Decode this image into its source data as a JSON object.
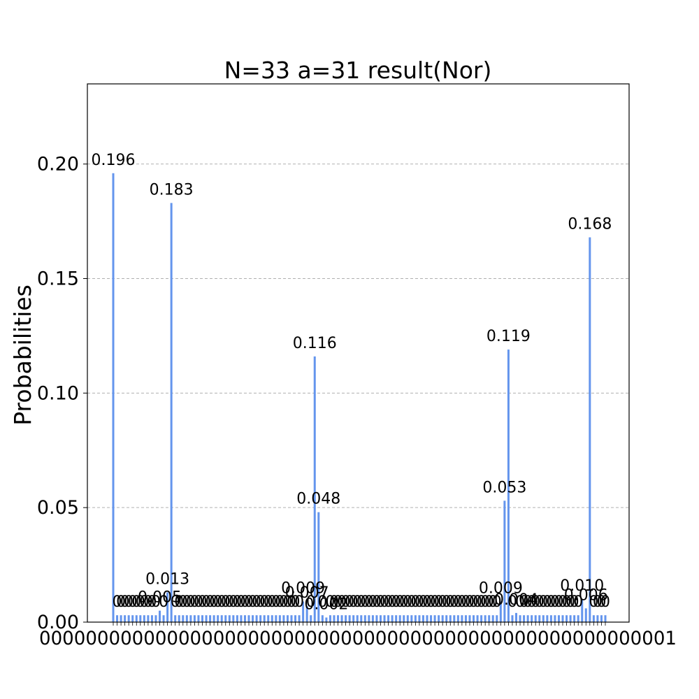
{
  "chart_data": {
    "type": "bar",
    "title": "N=33 a=31 result(Nor)",
    "xlabel": "",
    "ylabel": "Probabilities",
    "ylim": [
      0,
      0.235
    ],
    "yticks": [
      "0.00",
      "0.05",
      "0.10",
      "0.15",
      "0.20"
    ],
    "grid": "y-dashed",
    "bar_color": "#6495ed",
    "bin_count": 128,
    "series": [
      {
        "bars": [
          {
            "index": 0,
            "value": 0.196,
            "label": "0.196"
          },
          {
            "index": 1,
            "value": 0.003,
            "label": "0"
          },
          {
            "index": 2,
            "value": 0.003,
            "label": "0"
          },
          {
            "index": 3,
            "value": 0.003,
            "label": "0"
          },
          {
            "index": 4,
            "value": 0.003,
            "label": "0"
          },
          {
            "index": 5,
            "value": 0.003,
            "label": "0"
          },
          {
            "index": 6,
            "value": 0.003,
            "label": "0"
          },
          {
            "index": 7,
            "value": 0.003,
            "label": "0"
          },
          {
            "index": 8,
            "value": 0.003,
            "label": "0"
          },
          {
            "index": 9,
            "value": 0.003,
            "label": "0"
          },
          {
            "index": 10,
            "value": 0.003,
            "label": "0"
          },
          {
            "index": 11,
            "value": 0.003,
            "label": "0"
          },
          {
            "index": 12,
            "value": 0.005,
            "label": "0.005"
          },
          {
            "index": 13,
            "value": 0.003,
            "label": "0"
          },
          {
            "index": 14,
            "value": 0.013,
            "label": "0.013"
          },
          {
            "index": 15,
            "value": 0.183,
            "label": "0.183"
          },
          {
            "index": 16,
            "value": 0.003,
            "label": "0"
          },
          {
            "index": 17,
            "value": 0.003,
            "label": "0"
          },
          {
            "index": 18,
            "value": 0.003,
            "label": "0"
          },
          {
            "index": 19,
            "value": 0.003,
            "label": "0"
          },
          {
            "index": 20,
            "value": 0.003,
            "label": "0"
          },
          {
            "index": 21,
            "value": 0.003,
            "label": "0"
          },
          {
            "index": 22,
            "value": 0.003,
            "label": "0"
          },
          {
            "index": 23,
            "value": 0.003,
            "label": "0"
          },
          {
            "index": 24,
            "value": 0.003,
            "label": "0"
          },
          {
            "index": 25,
            "value": 0.003,
            "label": "0"
          },
          {
            "index": 26,
            "value": 0.003,
            "label": "0"
          },
          {
            "index": 27,
            "value": 0.003,
            "label": "0"
          },
          {
            "index": 28,
            "value": 0.003,
            "label": "0"
          },
          {
            "index": 29,
            "value": 0.003,
            "label": "0"
          },
          {
            "index": 30,
            "value": 0.003,
            "label": "0"
          },
          {
            "index": 31,
            "value": 0.003,
            "label": "0"
          },
          {
            "index": 32,
            "value": 0.003,
            "label": "0"
          },
          {
            "index": 33,
            "value": 0.003,
            "label": "0"
          },
          {
            "index": 34,
            "value": 0.003,
            "label": "0"
          },
          {
            "index": 35,
            "value": 0.003,
            "label": "0"
          },
          {
            "index": 36,
            "value": 0.003,
            "label": "0"
          },
          {
            "index": 37,
            "value": 0.003,
            "label": "0"
          },
          {
            "index": 38,
            "value": 0.003,
            "label": "0"
          },
          {
            "index": 39,
            "value": 0.003,
            "label": "0"
          },
          {
            "index": 40,
            "value": 0.003,
            "label": "0"
          },
          {
            "index": 41,
            "value": 0.003,
            "label": "0"
          },
          {
            "index": 42,
            "value": 0.003,
            "label": "0"
          },
          {
            "index": 43,
            "value": 0.003,
            "label": "0"
          },
          {
            "index": 44,
            "value": 0.003,
            "label": "0"
          },
          {
            "index": 45,
            "value": 0.003,
            "label": "0"
          },
          {
            "index": 46,
            "value": 0.003,
            "label": "0"
          },
          {
            "index": 47,
            "value": 0.003,
            "label": "0"
          },
          {
            "index": 48,
            "value": 0.003,
            "label": "0"
          },
          {
            "index": 49,
            "value": 0.009,
            "label": "0.009"
          },
          {
            "index": 50,
            "value": 0.007,
            "label": "0.007"
          },
          {
            "index": 51,
            "value": 0.003,
            "label": "0"
          },
          {
            "index": 52,
            "value": 0.116,
            "label": "0.116"
          },
          {
            "index": 53,
            "value": 0.048,
            "label": "0.048"
          },
          {
            "index": 54,
            "value": 0.003,
            "label": "0"
          },
          {
            "index": 55,
            "value": 0.002,
            "label": "0.002"
          },
          {
            "index": 56,
            "value": 0.003,
            "label": "0"
          },
          {
            "index": 57,
            "value": 0.003,
            "label": "0"
          },
          {
            "index": 58,
            "value": 0.003,
            "label": "0"
          },
          {
            "index": 59,
            "value": 0.003,
            "label": "0"
          },
          {
            "index": 60,
            "value": 0.003,
            "label": "0"
          },
          {
            "index": 61,
            "value": 0.003,
            "label": "0"
          },
          {
            "index": 62,
            "value": 0.003,
            "label": "0"
          },
          {
            "index": 63,
            "value": 0.003,
            "label": "0"
          },
          {
            "index": 64,
            "value": 0.003,
            "label": "0"
          },
          {
            "index": 65,
            "value": 0.003,
            "label": "0"
          },
          {
            "index": 66,
            "value": 0.003,
            "label": "0"
          },
          {
            "index": 67,
            "value": 0.003,
            "label": "0"
          },
          {
            "index": 68,
            "value": 0.003,
            "label": "0"
          },
          {
            "index": 69,
            "value": 0.003,
            "label": "0"
          },
          {
            "index": 70,
            "value": 0.003,
            "label": "0"
          },
          {
            "index": 71,
            "value": 0.003,
            "label": "0"
          },
          {
            "index": 72,
            "value": 0.003,
            "label": "0"
          },
          {
            "index": 73,
            "value": 0.003,
            "label": "0"
          },
          {
            "index": 74,
            "value": 0.003,
            "label": "0"
          },
          {
            "index": 75,
            "value": 0.003,
            "label": "0"
          },
          {
            "index": 76,
            "value": 0.003,
            "label": "0"
          },
          {
            "index": 77,
            "value": 0.003,
            "label": "0"
          },
          {
            "index": 78,
            "value": 0.003,
            "label": "0"
          },
          {
            "index": 79,
            "value": 0.003,
            "label": "0"
          },
          {
            "index": 80,
            "value": 0.003,
            "label": "0"
          },
          {
            "index": 81,
            "value": 0.003,
            "label": "0"
          },
          {
            "index": 82,
            "value": 0.003,
            "label": "0"
          },
          {
            "index": 83,
            "value": 0.003,
            "label": "0"
          },
          {
            "index": 84,
            "value": 0.003,
            "label": "0"
          },
          {
            "index": 85,
            "value": 0.003,
            "label": "0"
          },
          {
            "index": 86,
            "value": 0.003,
            "label": "0"
          },
          {
            "index": 87,
            "value": 0.003,
            "label": "0"
          },
          {
            "index": 88,
            "value": 0.003,
            "label": "0"
          },
          {
            "index": 89,
            "value": 0.003,
            "label": "0"
          },
          {
            "index": 90,
            "value": 0.003,
            "label": "0"
          },
          {
            "index": 91,
            "value": 0.003,
            "label": "0"
          },
          {
            "index": 92,
            "value": 0.003,
            "label": "0"
          },
          {
            "index": 93,
            "value": 0.003,
            "label": "0"
          },
          {
            "index": 94,
            "value": 0.003,
            "label": "0"
          },
          {
            "index": 95,
            "value": 0.003,
            "label": "0"
          },
          {
            "index": 96,
            "value": 0.003,
            "label": "0"
          },
          {
            "index": 97,
            "value": 0.003,
            "label": "0"
          },
          {
            "index": 98,
            "value": 0.003,
            "label": "0"
          },
          {
            "index": 99,
            "value": 0.003,
            "label": "0"
          },
          {
            "index": 100,
            "value": 0.009,
            "label": "0.009"
          },
          {
            "index": 101,
            "value": 0.053,
            "label": "0.053"
          },
          {
            "index": 102,
            "value": 0.119,
            "label": "0.119"
          },
          {
            "index": 103,
            "value": 0.003,
            "label": "0"
          },
          {
            "index": 104,
            "value": 0.004,
            "label": "0.004"
          },
          {
            "index": 105,
            "value": 0.003,
            "label": "0"
          },
          {
            "index": 106,
            "value": 0.003,
            "label": "0"
          },
          {
            "index": 107,
            "value": 0.003,
            "label": "0"
          },
          {
            "index": 108,
            "value": 0.003,
            "label": "0"
          },
          {
            "index": 109,
            "value": 0.003,
            "label": "0"
          },
          {
            "index": 110,
            "value": 0.003,
            "label": "0"
          },
          {
            "index": 111,
            "value": 0.003,
            "label": "0"
          },
          {
            "index": 112,
            "value": 0.003,
            "label": "0"
          },
          {
            "index": 113,
            "value": 0.003,
            "label": "0"
          },
          {
            "index": 114,
            "value": 0.003,
            "label": "0"
          },
          {
            "index": 115,
            "value": 0.003,
            "label": "0"
          },
          {
            "index": 116,
            "value": 0.003,
            "label": "0"
          },
          {
            "index": 117,
            "value": 0.003,
            "label": "0"
          },
          {
            "index": 118,
            "value": 0.003,
            "label": "0"
          },
          {
            "index": 119,
            "value": 0.003,
            "label": "0"
          },
          {
            "index": 120,
            "value": 0.003,
            "label": "0"
          },
          {
            "index": 121,
            "value": 0.01,
            "label": "0.010"
          },
          {
            "index": 122,
            "value": 0.006,
            "label": "0.006"
          },
          {
            "index": 123,
            "value": 0.168,
            "label": "0.168"
          },
          {
            "index": 124,
            "value": 0.003,
            "label": "0"
          },
          {
            "index": 125,
            "value": 0.003,
            "label": "0"
          },
          {
            "index": 126,
            "value": 0.003,
            "label": "0"
          },
          {
            "index": 127,
            "value": 0.003,
            "label": "0"
          }
        ]
      }
    ]
  }
}
